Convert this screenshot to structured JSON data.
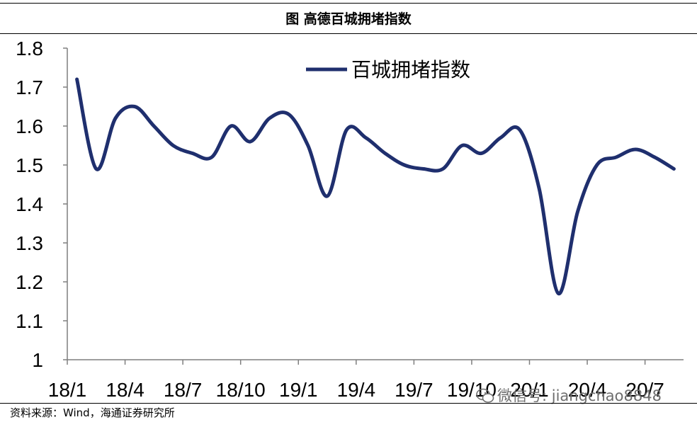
{
  "figure": {
    "title": "图  高德百城拥堵指数",
    "source": "资料来源：Wind，海通证券研究所",
    "watermark": "微信号: jiangchao8848",
    "watermark_icon": "wechat-icon"
  },
  "chart_data": {
    "type": "line",
    "title": "",
    "xlabel": "",
    "ylabel": "",
    "ylim": [
      1,
      1.8
    ],
    "yticks": [
      "1",
      "1.1",
      "1.2",
      "1.3",
      "1.4",
      "1.5",
      "1.6",
      "1.7",
      "1.8"
    ],
    "xticks": [
      "18/1",
      "18/4",
      "18/7",
      "18/10",
      "19/1",
      "19/4",
      "19/7",
      "19/10",
      "20/1",
      "20/4",
      "20/7"
    ],
    "grid": false,
    "legend": "top-center",
    "color": "#1f2f6e",
    "series": [
      {
        "name": "百城拥堵指数",
        "x": [
          "18/1",
          "18/2",
          "18/3",
          "18/4",
          "18/5",
          "18/6",
          "18/7",
          "18/8",
          "18/9",
          "18/10",
          "18/11",
          "18/12",
          "19/1",
          "19/2",
          "19/3",
          "19/4",
          "19/5",
          "19/6",
          "19/7",
          "19/8",
          "19/9",
          "19/10",
          "19/11",
          "19/12",
          "20/1",
          "20/2",
          "20/3",
          "20/4",
          "20/5",
          "20/6",
          "20/7",
          "20/8"
        ],
        "values": [
          1.72,
          1.49,
          1.62,
          1.65,
          1.6,
          1.55,
          1.53,
          1.52,
          1.6,
          1.56,
          1.62,
          1.63,
          1.55,
          1.42,
          1.59,
          1.57,
          1.53,
          1.5,
          1.49,
          1.49,
          1.55,
          1.53,
          1.57,
          1.59,
          1.44,
          1.17,
          1.38,
          1.5,
          1.52,
          1.54,
          1.52,
          1.49
        ]
      }
    ]
  }
}
